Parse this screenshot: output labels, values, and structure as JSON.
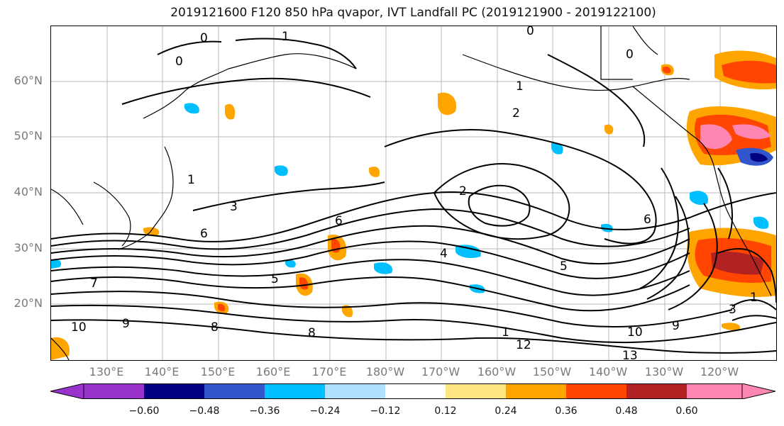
{
  "title": "2019121600 F120 850 hPa qvapor, IVT Landfall PC (2019121900 - 2019122100)",
  "lat_labels": [
    "60°N",
    "50°N",
    "40°N",
    "30°N",
    "20°N"
  ],
  "lon_labels": [
    "130°E",
    "140°E",
    "150°E",
    "160°E",
    "170°E",
    "180°W",
    "170°W",
    "160°W",
    "150°W",
    "140°W",
    "130°W",
    "120°W"
  ],
  "colorbar": {
    "ticks": [
      "−0.60",
      "−0.48",
      "−0.36",
      "−0.24",
      "−0.12",
      "0.12",
      "0.24",
      "0.36",
      "0.48",
      "0.60"
    ],
    "colors": [
      "#9933cc",
      "#000080",
      "#3355cc",
      "#00bfff",
      "#b0e2ff",
      "#ffffff",
      "#ffe680",
      "#ffa500",
      "#ff4500",
      "#b22222",
      "#ff85b3"
    ]
  },
  "contour_labels": [
    "0",
    "1",
    "0",
    "0",
    "0",
    "1",
    "1",
    "2",
    "2",
    "3",
    "6",
    "6",
    "4",
    "5",
    "5",
    "6",
    "7",
    "8",
    "8",
    "9",
    "9",
    "10",
    "10",
    "12",
    "13",
    "1",
    "1",
    "3"
  ]
}
